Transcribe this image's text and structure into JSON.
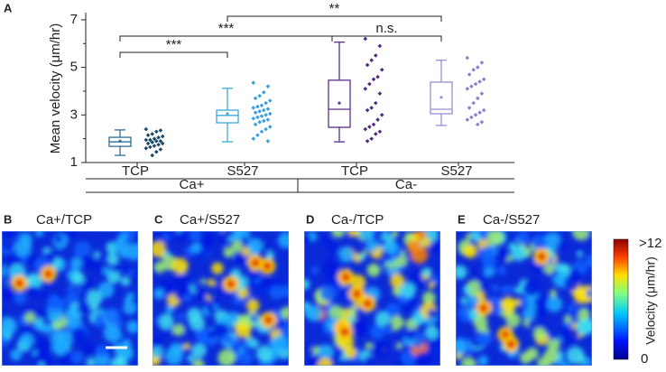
{
  "chart_data": {
    "type": "box",
    "panel_label": "A",
    "ylabel": "Mean velocity (μm/hr)",
    "ylim": [
      1,
      7.3
    ],
    "yticks": [
      1,
      3,
      5,
      7
    ],
    "minor_yticks": [
      2,
      4,
      6
    ],
    "groups": [
      {
        "name": "Ca+",
        "boxes": [
          {
            "category": "TCP",
            "color": "#2e6f95",
            "point_color": "#1d4a69",
            "whislo": 1.3,
            "q1": 1.68,
            "med": 1.87,
            "q3": 2.06,
            "whishi": 2.37,
            "mean": 1.9,
            "points": [
              2.4,
              2.35,
              2.3,
              2.2,
              2.15,
              2.1,
              2.05,
              2.0,
              1.95,
              1.95,
              1.9,
              1.9,
              1.85,
              1.8,
              1.8,
              1.75,
              1.7,
              1.65,
              1.6,
              1.55,
              1.45,
              1.3
            ]
          },
          {
            "category": "S527",
            "color": "#3fa9dc",
            "point_color": "#3a9fe0",
            "whislo": 1.87,
            "q1": 2.67,
            "med": 2.98,
            "q3": 3.2,
            "whishi": 4.12,
            "mean": 3.05,
            "points": [
              4.35,
              4.2,
              3.95,
              3.8,
              3.7,
              3.6,
              3.5,
              3.4,
              3.35,
              3.3,
              3.25,
              3.2,
              3.15,
              3.1,
              3.05,
              3.0,
              2.95,
              2.9,
              2.85,
              2.8,
              2.75,
              2.7,
              2.6,
              2.5,
              2.4,
              2.3,
              2.15,
              2.0,
              1.9
            ]
          }
        ]
      },
      {
        "name": "Ca-",
        "boxes": [
          {
            "category": "TCP",
            "color": "#5b2f88",
            "point_color": "#4e2a80",
            "whislo": 1.87,
            "q1": 2.48,
            "med": 3.24,
            "q3": 4.46,
            "whishi": 6.06,
            "mean": 3.5,
            "points": [
              6.2,
              5.9,
              5.5,
              5.3,
              5.1,
              4.9,
              4.6,
              4.5,
              4.3,
              4.1,
              3.9,
              3.5,
              3.3,
              3.2,
              3.0,
              2.8,
              2.6,
              2.5,
              2.4,
              2.3,
              2.2,
              2.0,
              1.9
            ]
          },
          {
            "category": "S527",
            "color": "#9d8cd2",
            "point_color": "#8e7dcc",
            "whislo": 2.56,
            "q1": 3.05,
            "med": 3.24,
            "q3": 4.38,
            "whishi": 5.3,
            "mean": 3.74,
            "points": [
              5.4,
              5.2,
              5.0,
              4.9,
              4.7,
              4.5,
              4.4,
              4.3,
              4.2,
              4.1,
              3.9,
              3.7,
              3.5,
              3.3,
              3.2,
              3.1,
              3.0,
              2.9,
              2.8,
              2.7,
              2.6
            ]
          }
        ]
      }
    ],
    "significance": [
      "***",
      "***",
      "**",
      "n.s."
    ]
  },
  "panels": [
    {
      "letter": "B",
      "title": "Ca+/TCP"
    },
    {
      "letter": "C",
      "title": "Ca+/S527"
    },
    {
      "letter": "D",
      "title": "Ca-/TCP"
    },
    {
      "letter": "E",
      "title": "Ca-/S527"
    }
  ],
  "colorbar": {
    "label": "Velocity (μm/hr)",
    "max_label": ">12",
    "min_label": "0"
  }
}
